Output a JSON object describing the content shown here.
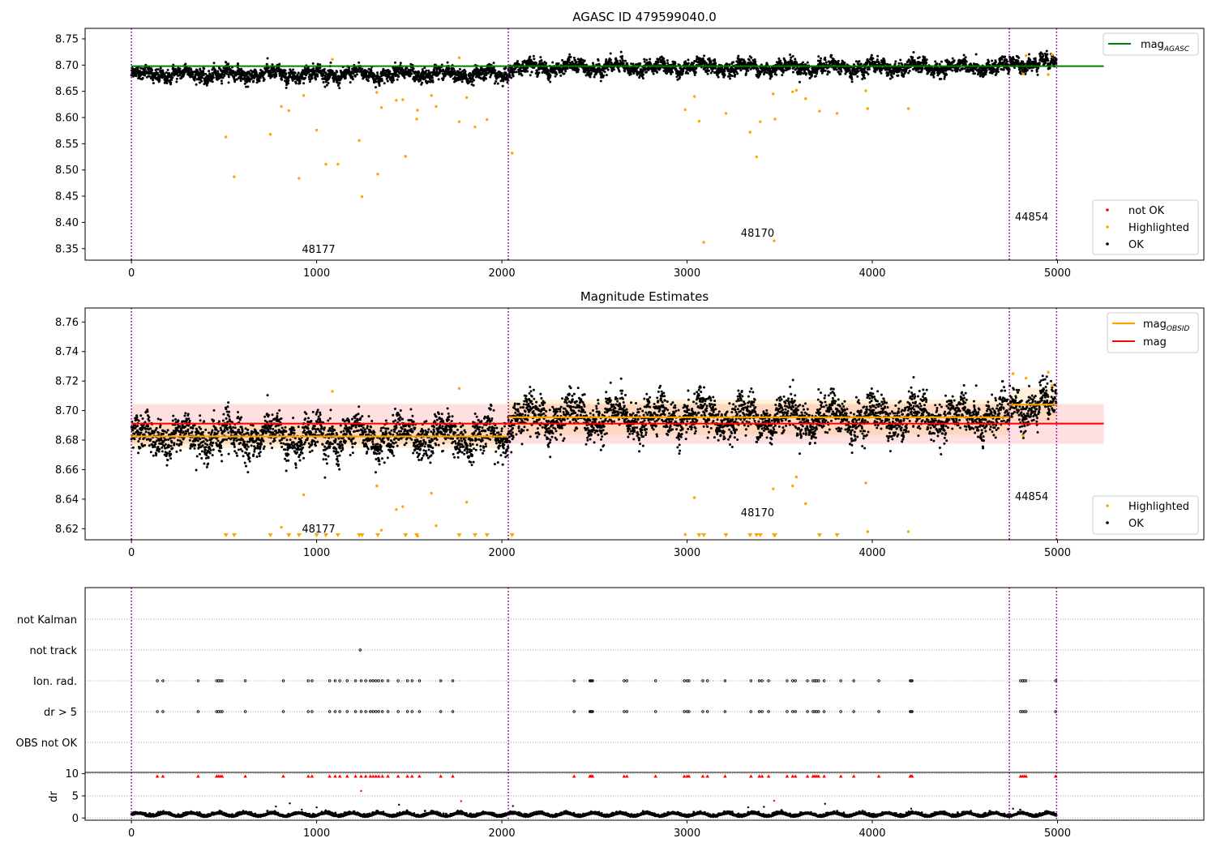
{
  "chart_data": [
    {
      "type": "scatter",
      "title": "AGASC ID 479599040.0",
      "xlim": [
        -250,
        5790
      ],
      "ylim": [
        8.328,
        8.77
      ],
      "x_ticks": [
        0,
        1000,
        2000,
        3000,
        4000,
        5000
      ],
      "y_ticks": [
        8.35,
        8.4,
        8.45,
        8.5,
        8.55,
        8.6,
        8.65,
        8.7,
        8.75
      ],
      "y_tick_labels": [
        "8.35",
        "8.40",
        "8.45",
        "8.50",
        "8.55",
        "8.60",
        "8.65",
        "8.70",
        "8.75"
      ],
      "obsid_boundaries": [
        0,
        2035,
        4740,
        4995
      ],
      "obsid_labels": [
        {
          "text": "48177",
          "x": 920,
          "y": 8.342
        },
        {
          "text": "48170",
          "x": 3290,
          "y": 8.373
        },
        {
          "text": "44854",
          "x": 4770,
          "y": 8.404
        }
      ],
      "lines": [
        {
          "name": "mag",
          "name_sub": "AGASC",
          "color": "#008000",
          "x": [
            0,
            5250
          ],
          "y": [
            8.698,
            8.698
          ]
        }
      ],
      "series": [
        {
          "name": "not OK",
          "color": "#ff0000",
          "points": []
        },
        {
          "name": "Highlighted",
          "color": "#ffa500",
          "points": [
            [
              510,
              8.563
            ],
            [
              555,
              8.487
            ],
            [
              750,
              8.568
            ],
            [
              810,
              8.621
            ],
            [
              850,
              8.613
            ],
            [
              905,
              8.484
            ],
            [
              930,
              8.642
            ],
            [
              1000,
              8.576
            ],
            [
              1050,
              8.511
            ],
            [
              1085,
              8.711
            ],
            [
              1115,
              8.511
            ],
            [
              1230,
              8.556
            ],
            [
              1245,
              8.449
            ],
            [
              1325,
              8.648
            ],
            [
              1330,
              8.492
            ],
            [
              1350,
              8.619
            ],
            [
              1430,
              8.633
            ],
            [
              1465,
              8.634
            ],
            [
              1480,
              8.526
            ],
            [
              1540,
              8.597
            ],
            [
              1545,
              8.614
            ],
            [
              1620,
              8.642
            ],
            [
              1645,
              8.621
            ],
            [
              1770,
              8.592
            ],
            [
              1770,
              8.714
            ],
            [
              1810,
              8.638
            ],
            [
              1855,
              8.582
            ],
            [
              1920,
              8.596
            ],
            [
              2055,
              8.532
            ],
            [
              2990,
              8.615
            ],
            [
              3040,
              8.64
            ],
            [
              3065,
              8.593
            ],
            [
              3090,
              8.362
            ],
            [
              3210,
              8.608
            ],
            [
              3340,
              8.572
            ],
            [
              3375,
              8.525
            ],
            [
              3395,
              8.592
            ],
            [
              3465,
              8.645
            ],
            [
              3470,
              8.365
            ],
            [
              3475,
              8.597
            ],
            [
              3570,
              8.649
            ],
            [
              3590,
              8.652
            ],
            [
              3640,
              8.636
            ],
            [
              3715,
              8.612
            ],
            [
              3810,
              8.608
            ],
            [
              3965,
              8.651
            ],
            [
              3975,
              8.617
            ],
            [
              4195,
              8.617
            ],
            [
              4815,
              8.683
            ],
            [
              4830,
              8.718
            ],
            [
              4950,
              8.682
            ],
            [
              4970,
              8.72
            ]
          ]
        },
        {
          "name": "OK",
          "color": "#000000",
          "points": []
        }
      ],
      "legends": [
        {
          "position": "top-right",
          "entries": [
            "mag_AGASC"
          ]
        },
        {
          "position": "lower-right",
          "entries": [
            "not OK",
            "Highlighted",
            "OK"
          ]
        }
      ]
    },
    {
      "type": "scatter",
      "title": "Magnitude Estimates",
      "xlim": [
        -250,
        5790
      ],
      "ylim": [
        8.6125,
        8.7695
      ],
      "x_ticks": [
        0,
        1000,
        2000,
        3000,
        4000,
        5000
      ],
      "y_ticks": [
        8.62,
        8.64,
        8.66,
        8.68,
        8.7,
        8.72,
        8.74,
        8.76
      ],
      "y_tick_labels": [
        "8.62",
        "8.64",
        "8.66",
        "8.68",
        "8.70",
        "8.72",
        "8.74",
        "8.76"
      ],
      "obsid_boundaries": [
        0,
        2035,
        4740,
        4995
      ],
      "obsid_labels": [
        {
          "text": "48177",
          "x": 920,
          "y": 8.6175
        },
        {
          "text": "48170",
          "x": 3290,
          "y": 8.6285
        },
        {
          "text": "44854",
          "x": 4770,
          "y": 8.6395
        }
      ],
      "band": {
        "color": "#ff0000",
        "x": [
          0,
          5250
        ],
        "y": [
          8.6775,
          8.7045
        ]
      },
      "segment_bands": [
        {
          "x": [
            0,
            2035
          ],
          "y": [
            8.6745,
            8.6905
          ]
        },
        {
          "x": [
            2035,
            4740
          ],
          "y": [
            8.6835,
            8.7075
          ]
        },
        {
          "x": [
            4740,
            4995
          ],
          "y": [
            8.6925,
            8.7155
          ]
        }
      ],
      "lines": [
        {
          "name": "mag",
          "name_sub": "OBSID",
          "color": "#ffa500",
          "segments": [
            {
              "x": [
                0,
                2035
              ],
              "y": 8.6825
            },
            {
              "x": [
                2035,
                4740
              ],
              "y": 8.6955
            },
            {
              "x": [
                4740,
                4995
              ],
              "y": 8.704
            }
          ]
        },
        {
          "name": "mag",
          "color": "#ff0000",
          "x": [
            0,
            5250
          ],
          "y": [
            8.6912,
            8.6912
          ]
        }
      ],
      "series": [
        {
          "name": "Highlighted",
          "color": "#ffa500",
          "points": [
            [
              930,
              8.643
            ],
            [
              810,
              8.621
            ],
            [
              1085,
              8.713
            ],
            [
              1325,
              8.649
            ],
            [
              1350,
              8.619
            ],
            [
              1430,
              8.633
            ],
            [
              1465,
              8.635
            ],
            [
              1545,
              8.615
            ],
            [
              1620,
              8.644
            ],
            [
              1645,
              8.622
            ],
            [
              1770,
              8.715
            ],
            [
              1810,
              8.638
            ],
            [
              3040,
              8.641
            ],
            [
              2990,
              8.616
            ],
            [
              3465,
              8.647
            ],
            [
              3570,
              8.649
            ],
            [
              3590,
              8.655
            ],
            [
              3640,
              8.637
            ],
            [
              3975,
              8.618
            ],
            [
              3965,
              8.651
            ],
            [
              4195,
              8.618
            ],
            [
              4815,
              8.683
            ],
            [
              4760,
              8.725
            ],
            [
              4830,
              8.722
            ],
            [
              4950,
              8.726
            ],
            [
              4970,
              8.717
            ]
          ]
        },
        {
          "name": "OK",
          "color": "#000000",
          "points": []
        }
      ],
      "clipped_markers_x": [
        510,
        555,
        750,
        850,
        905,
        1000,
        1050,
        1115,
        1230,
        1245,
        1330,
        1480,
        1540,
        1770,
        1855,
        1920,
        2055,
        3065,
        3090,
        3210,
        3340,
        3375,
        3395,
        3470,
        3475,
        3715,
        3810
      ],
      "legends": [
        {
          "position": "top-right",
          "entries": [
            "mag_OBSID",
            "mag"
          ]
        },
        {
          "position": "lower-right",
          "entries": [
            "Highlighted",
            "OK"
          ]
        }
      ]
    },
    {
      "type": "scatter",
      "title": "",
      "xlim": [
        -250,
        5790
      ],
      "flag_labels": [
        "not Kalman",
        "not track",
        "Ion. rad.",
        "dr > 5",
        "OBS not OK"
      ],
      "obsid_boundaries": [
        0,
        2035,
        4740,
        4995
      ],
      "flag_points": {
        "not track": [
          1235
        ],
        "Ion. rad.": [
          140,
          170,
          360,
          460,
          470,
          480,
          490,
          615,
          820,
          955,
          975,
          1070,
          1100,
          1125,
          1165,
          1210,
          1240,
          1265,
          1290,
          1305,
          1320,
          1335,
          1355,
          1385,
          1440,
          1490,
          1515,
          1555,
          1670,
          1735,
          2390,
          2475,
          2480,
          2485,
          2490,
          2660,
          2675,
          2830,
          2985,
          3000,
          3010,
          3085,
          3110,
          3205,
          3345,
          3390,
          3405,
          3440,
          3540,
          3570,
          3585,
          3650,
          3680,
          3690,
          3700,
          3710,
          3740,
          3830,
          3900,
          4035,
          4205,
          4210,
          4215,
          4800,
          4810,
          4820,
          4830,
          4990
        ],
        "dr > 5": [
          140,
          170,
          360,
          460,
          470,
          480,
          490,
          615,
          820,
          955,
          975,
          1070,
          1100,
          1125,
          1165,
          1210,
          1240,
          1265,
          1290,
          1305,
          1320,
          1335,
          1355,
          1385,
          1440,
          1490,
          1515,
          1555,
          1670,
          1735,
          2390,
          2475,
          2480,
          2485,
          2490,
          2660,
          2675,
          2830,
          2985,
          3000,
          3010,
          3085,
          3110,
          3205,
          3345,
          3390,
          3405,
          3440,
          3540,
          3570,
          3585,
          3650,
          3680,
          3690,
          3700,
          3710,
          3740,
          3830,
          3900,
          4035,
          4205,
          4210,
          4215,
          4800,
          4810,
          4820,
          4830,
          4990
        ]
      }
    },
    {
      "type": "scatter",
      "title": "",
      "ylabel": "dr",
      "xlim": [
        -250,
        5790
      ],
      "ylim": [
        -0.5,
        10.3
      ],
      "x_ticks": [
        0,
        1000,
        2000,
        3000,
        4000,
        5000
      ],
      "y_ticks": [
        0,
        5,
        10
      ],
      "y_tick_labels": [
        "0",
        "5",
        "10"
      ],
      "obsid_boundaries": [
        0,
        2035,
        4740,
        4995
      ],
      "outliers": [
        [
          780,
          2.6
        ],
        [
          855,
          3.3
        ],
        [
          920,
          1.9
        ],
        [
          1000,
          2.4
        ],
        [
          1240,
          6.1
        ],
        [
          1445,
          3.0
        ],
        [
          1780,
          3.8
        ],
        [
          2060,
          2.7
        ],
        [
          3330,
          2.4
        ],
        [
          3415,
          2.5
        ],
        [
          3470,
          3.9
        ],
        [
          3745,
          3.2
        ],
        [
          4210,
          2.1
        ],
        [
          4760,
          2.1
        ]
      ],
      "clipped_x": [
        140,
        170,
        360,
        460,
        470,
        480,
        490,
        615,
        820,
        955,
        975,
        1070,
        1100,
        1125,
        1165,
        1210,
        1240,
        1265,
        1290,
        1305,
        1320,
        1335,
        1355,
        1385,
        1440,
        1490,
        1515,
        1555,
        1670,
        1735,
        2390,
        2475,
        2480,
        2485,
        2490,
        2660,
        2675,
        2830,
        2985,
        3000,
        3010,
        3085,
        3110,
        3205,
        3345,
        3390,
        3405,
        3440,
        3540,
        3570,
        3585,
        3650,
        3680,
        3690,
        3700,
        3710,
        3740,
        3830,
        3900,
        4035,
        4205,
        4210,
        4215,
        4800,
        4810,
        4820,
        4830,
        4990
      ]
    }
  ]
}
